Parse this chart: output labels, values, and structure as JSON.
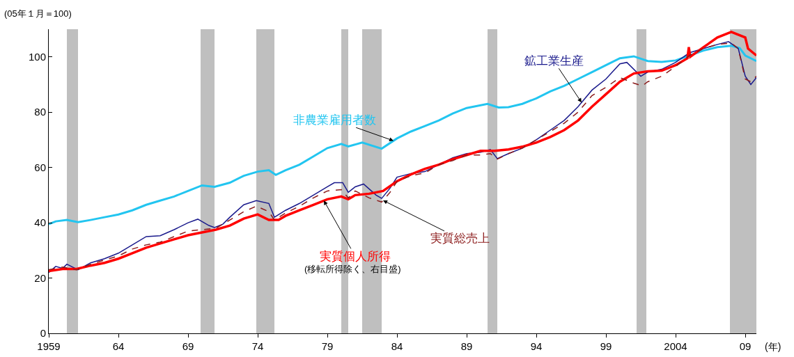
{
  "chart_data": {
    "type": "line",
    "ylabel": "(05年１月＝100)",
    "xlabel": "(年)",
    "xlim": [
      1959,
      2009.8
    ],
    "ylim": [
      0,
      110
    ],
    "xticks": [
      {
        "value": 1959,
        "label": "1959"
      },
      {
        "value": 1964,
        "label": "64"
      },
      {
        "value": 1969,
        "label": "69"
      },
      {
        "value": 1974,
        "label": "74"
      },
      {
        "value": 1979,
        "label": "79"
      },
      {
        "value": 1984,
        "label": "84"
      },
      {
        "value": 1989,
        "label": "89"
      },
      {
        "value": 1994,
        "label": "94"
      },
      {
        "value": 1999,
        "label": "99"
      },
      {
        "value": 2004,
        "label": "2004"
      },
      {
        "value": 2009,
        "label": "09"
      }
    ],
    "yticks": [
      0,
      20,
      40,
      60,
      80,
      100
    ],
    "grid": false,
    "legend": false,
    "marker": "none",
    "bands": [
      {
        "axis": "x",
        "from": 1960.3,
        "to": 1961.1,
        "color": "#bfbfbf"
      },
      {
        "axis": "x",
        "from": 1969.9,
        "to": 1970.9,
        "color": "#bfbfbf"
      },
      {
        "axis": "x",
        "from": 1973.9,
        "to": 1975.2,
        "color": "#bfbfbf"
      },
      {
        "axis": "x",
        "from": 1980.0,
        "to": 1980.5,
        "color": "#bfbfbf"
      },
      {
        "axis": "x",
        "from": 1981.5,
        "to": 1982.9,
        "color": "#bfbfbf"
      },
      {
        "axis": "x",
        "from": 1990.5,
        "to": 1991.2,
        "color": "#bfbfbf"
      },
      {
        "axis": "x",
        "from": 2001.2,
        "to": 2001.9,
        "color": "#bfbfbf"
      },
      {
        "axis": "x",
        "from": 2007.9,
        "to": 2009.8,
        "color": "#bfbfbf"
      }
    ],
    "series": [
      {
        "name": "非農業雇用者数",
        "color": "#22c5f0",
        "x": [
          1959,
          1959.5,
          1960.3,
          1961.1,
          1962,
          1963,
          1964,
          1965,
          1966,
          1967,
          1968,
          1969,
          1970,
          1970.9,
          1972,
          1973,
          1974,
          1974.8,
          1975.3,
          1976,
          1977,
          1978,
          1979,
          1980,
          1980.5,
          1981.5,
          1982.9,
          1984,
          1985,
          1986,
          1987,
          1988,
          1989,
          1990.5,
          1991.3,
          1992,
          1993,
          1994,
          1995,
          1996,
          1997,
          1998,
          1999,
          2000,
          2001,
          2002,
          2003,
          2004,
          2005,
          2006,
          2007,
          2008,
          2008.6,
          2009,
          2009.8
        ],
        "values": [
          39.5,
          40.5,
          41,
          40.2,
          41,
          42,
          43,
          44.5,
          46.5,
          48,
          49.5,
          51.5,
          53.5,
          53,
          54.5,
          57,
          58.5,
          59,
          57.3,
          59,
          61,
          64,
          67,
          68.5,
          67.6,
          69,
          66.8,
          70.5,
          73,
          75,
          77,
          79.5,
          81.5,
          83,
          81.7,
          81.8,
          83,
          85,
          87.5,
          89.5,
          92,
          94.5,
          97,
          99.5,
          100.2,
          98.5,
          98.2,
          98.7,
          100.5,
          102.3,
          103.5,
          104,
          103.2,
          100.5,
          98.5
        ]
      },
      {
        "name": "鉱工業生産",
        "color": "#1a1a8c",
        "x": [
          1959,
          1959.5,
          1960,
          1960.3,
          1961.1,
          1962,
          1963,
          1964,
          1965,
          1966,
          1967,
          1968,
          1969,
          1969.7,
          1970.5,
          1970.9,
          1971.5,
          1972,
          1973,
          1973.9,
          1974.8,
          1975.2,
          1976,
          1977,
          1978,
          1979,
          1979.5,
          1980.1,
          1980.5,
          1981,
          1981.6,
          1982.5,
          1982.9,
          1983.5,
          1984,
          1985,
          1986,
          1987,
          1988,
          1989,
          1990,
          1990.7,
          1991.2,
          1992,
          1993,
          1994,
          1995,
          1996,
          1997,
          1998,
          1999,
          2000,
          2000.5,
          2001.5,
          2002,
          2003,
          2004,
          2005,
          2006,
          2007,
          2007.8,
          2008.5,
          2009,
          2009.4,
          2009.8
        ],
        "values": [
          22,
          24.2,
          23.5,
          25,
          23,
          25.5,
          27,
          29,
          32,
          35,
          35.3,
          37.5,
          40,
          41.3,
          39,
          38.3,
          39.5,
          42,
          46.5,
          48,
          47,
          42,
          44.5,
          47,
          50,
          53,
          54.5,
          54.5,
          51,
          53,
          54,
          50,
          48.8,
          52.5,
          56.5,
          57.8,
          58.5,
          61,
          63.5,
          65,
          65.5,
          66.5,
          63.2,
          65,
          67,
          70,
          73.5,
          77,
          82,
          88,
          92,
          97.5,
          98,
          93,
          94.5,
          95.5,
          98,
          101.5,
          103,
          104.5,
          105.5,
          103,
          93,
          90,
          92.5
        ]
      },
      {
        "name": "実質個人所得",
        "color": "#ff0000",
        "x": [
          1959,
          1960,
          1961,
          1962,
          1963,
          1964,
          1965,
          1966,
          1967,
          1968,
          1969,
          1970,
          1971,
          1972,
          1973,
          1974,
          1974.8,
          1975.5,
          1976,
          1977,
          1978,
          1979,
          1980,
          1980.5,
          1981,
          1982,
          1983,
          1984,
          1985,
          1986,
          1987,
          1988,
          1989,
          1990,
          1991,
          1992,
          1993,
          1994,
          1995,
          1996,
          1997,
          1998,
          1999,
          2000,
          2001,
          2002,
          2003,
          2004,
          2004.85,
          2004.95,
          2005.05,
          2006,
          2007,
          2008,
          2008.5,
          2009,
          2009.2,
          2009.8
        ],
        "values": [
          22.5,
          23.3,
          23.3,
          24.5,
          25.5,
          27,
          29,
          31,
          32.5,
          34,
          35.5,
          36.5,
          37.5,
          39,
          41.5,
          43,
          41,
          41,
          42.5,
          44.5,
          46.5,
          48.5,
          49.5,
          48.5,
          50,
          50.5,
          51.5,
          55,
          57.5,
          59.5,
          61,
          63,
          64.5,
          66,
          66,
          66.5,
          67.5,
          69,
          71,
          73.5,
          77,
          82,
          86.5,
          91,
          94,
          94.8,
          95,
          97,
          99.5,
          103.5,
          100,
          103.5,
          107,
          109,
          108,
          107,
          103,
          100.5
        ]
      },
      {
        "name": "実質総売上",
        "color": "#8b1a1a",
        "line_style": "dashed",
        "x": [
          1959,
          1960,
          1961,
          1962,
          1963,
          1964,
          1965,
          1966,
          1967,
          1968,
          1969,
          1970,
          1971,
          1972,
          1973,
          1973.9,
          1974.8,
          1975.2,
          1976,
          1977,
          1978,
          1979,
          1980,
          1980.5,
          1981,
          1982,
          1982.9,
          1983.5,
          1984,
          1985,
          1986,
          1987,
          1988,
          1989,
          1990,
          1990.7,
          1991.2,
          1992,
          1993,
          1994,
          1995,
          1996,
          1997,
          1998,
          1999,
          2000,
          2001,
          2001.6,
          2002,
          2003,
          2004,
          2005,
          2006,
          2007,
          2008,
          2008.5,
          2009,
          2009.4,
          2009.8
        ],
        "values": [
          23,
          24,
          23,
          25,
          26.5,
          28,
          30.5,
          32,
          33,
          35,
          37,
          37.5,
          38,
          41,
          44,
          46,
          44,
          41,
          43.5,
          46,
          49,
          51.5,
          52,
          49,
          51.5,
          49,
          47.5,
          51,
          55,
          57,
          58,
          61,
          62.5,
          64.5,
          64.5,
          65,
          63,
          65,
          67,
          70,
          73,
          76,
          80,
          86,
          89,
          92.5,
          90.5,
          89.5,
          91,
          93,
          96.5,
          100.5,
          103,
          104.5,
          105,
          103,
          92,
          91,
          93
        ]
      }
    ],
    "annotations": [
      "(移転所得除く、右目盛)"
    ]
  }
}
